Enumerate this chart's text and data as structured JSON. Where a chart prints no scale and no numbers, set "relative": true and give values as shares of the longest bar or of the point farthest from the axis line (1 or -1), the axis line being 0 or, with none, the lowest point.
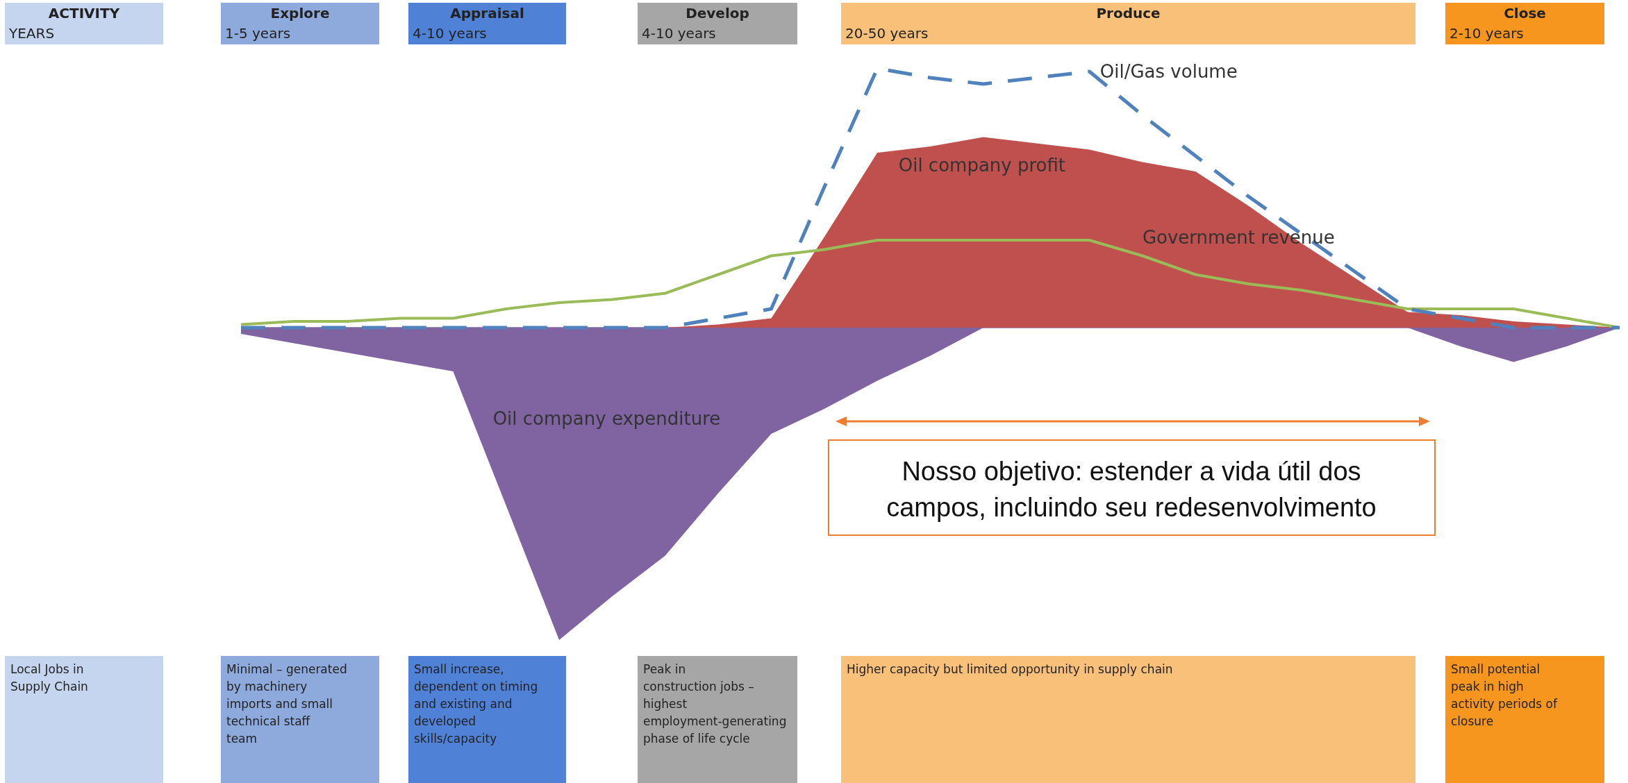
{
  "chart_data": {
    "type": "area",
    "relative": true,
    "categories": [
      null,
      null,
      null,
      null,
      null,
      null,
      null,
      null,
      null,
      null,
      null,
      null,
      null,
      null,
      null,
      null,
      null,
      null,
      null,
      null,
      null,
      null,
      null,
      null,
      null,
      null,
      null
    ],
    "series": [
      {
        "name": "Oil company expenditure",
        "color": "#8064a2",
        "values": [
          -0.02,
          -0.05,
          -0.08,
          -0.11,
          -0.14,
          -0.57,
          -1,
          -0.86,
          -0.73,
          -0.53,
          -0.34,
          -0.26,
          -0.17,
          -0.09,
          0,
          0,
          0,
          0,
          0,
          0,
          0,
          0,
          0,
          -0.06,
          -0.11,
          -0.06,
          0
        ]
      },
      {
        "name": "Oil company profit",
        "color": "#c0504d",
        "values": [
          0,
          0,
          0,
          0,
          0,
          0,
          0,
          0,
          0,
          0.01,
          0.03,
          0.29,
          0.56,
          0.58,
          0.61,
          0.59,
          0.57,
          0.53,
          0.5,
          0.39,
          0.27,
          0.16,
          0.05,
          0.04,
          0.02,
          0.01,
          0
        ]
      },
      {
        "name": "Government revenue",
        "type": "line",
        "color": "#9bbb59",
        "values": [
          0.01,
          0.02,
          0.02,
          0.03,
          0.03,
          0.06,
          0.08,
          0.09,
          0.11,
          0.17,
          0.23,
          0.25,
          0.28,
          0.28,
          0.28,
          0.28,
          0.28,
          0.23,
          0.17,
          0.14,
          0.12,
          0.09,
          0.06,
          0.06,
          0.06,
          0.03,
          0
        ]
      },
      {
        "name": "Oil/Gas volume",
        "type": "line",
        "line_style": "dashed",
        "color": "#4f81bd",
        "values": [
          0,
          0,
          0,
          0,
          0,
          0,
          0,
          0,
          0,
          0.03,
          0.06,
          0.45,
          0.83,
          0.8,
          0.78,
          0.8,
          0.82,
          0.68,
          0.55,
          0.42,
          0.3,
          0.18,
          0.06,
          0.03,
          0,
          0,
          0
        ]
      }
    ],
    "annotations": [
      "ACTIVITY",
      "YEARS",
      "Explore",
      "1-5 years",
      "Appraisal",
      "4-10 years",
      "Develop",
      "4-10 years",
      "Produce",
      "20-50 years",
      "Close",
      "2-10 years",
      "Local Jobs in Supply Chain",
      "Minimal – generated by machinery imports and small technical staff team",
      "Small increase, dependent on timing and existing and developed skills/capacity",
      "Peak in construction jobs – highest employment-generating phase of life cycle",
      "Higher capacity but limited opportunity in supply chain",
      "Small potential peak in high activity periods of closure",
      "Nosso objetivo: estender a vida útil dos campos, incluindo seu redesenvolvimento"
    ]
  }
}
